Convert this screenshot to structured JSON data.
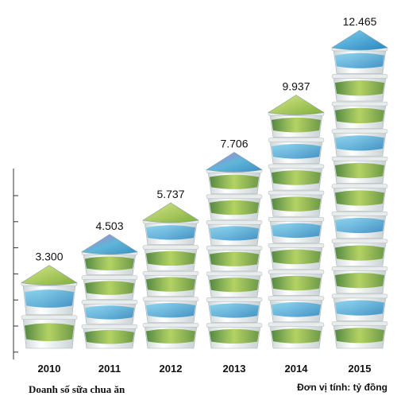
{
  "chart_data": {
    "type": "bar",
    "categories": [
      "2010",
      "2011",
      "2012",
      "2013",
      "2014",
      "2015"
    ],
    "values": [
      3300,
      4503,
      5737,
      7706,
      9937,
      12465
    ],
    "value_labels": [
      "3.300",
      "4.503",
      "5.737",
      "7.706",
      "9.937",
      "12.465"
    ],
    "ylim": [
      0,
      12465
    ],
    "grid": false,
    "bar_style": "stacked yogurt cups"
  },
  "footer": {
    "left_caption": "Doanh số sữa chua ăn",
    "right_caption": "Đơn vị tính: tỷ đồng"
  },
  "colors": {
    "cup_body": "#f2f4f4",
    "cup_green": "#8fbf3a",
    "cup_green_dark": "#3f7a28",
    "cup_lid_blue": "#39a6d8",
    "cup_lid_purple": "#8e4a9e",
    "cup_lid_green": "#b8cc55",
    "axis": "#333333"
  }
}
